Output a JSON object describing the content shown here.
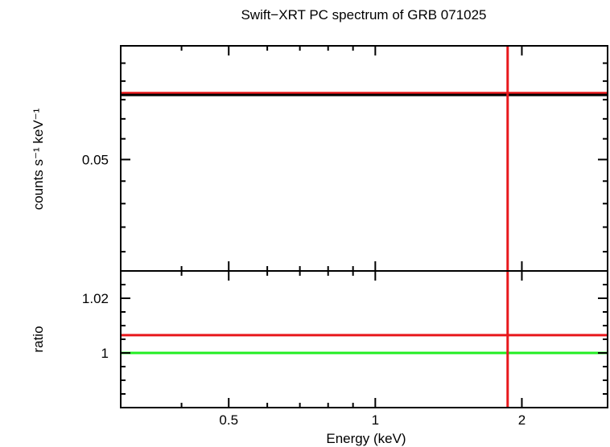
{
  "chart_data": {
    "title": "Swift−XRT PC spectrum of GRB 071025",
    "xlabel": "Energy (keV)",
    "x_scale": "log",
    "xlim": [
      0.3,
      3.0
    ],
    "xticks": [
      {
        "value": 0.5,
        "label": "0.5"
      },
      {
        "value": 1,
        "label": "1"
      },
      {
        "value": 2,
        "label": "2"
      }
    ],
    "panels": [
      {
        "id": "spectrum",
        "type": "line",
        "ylabel": "counts s⁻¹ keV⁻¹",
        "y_scale": "log",
        "ylim": [
          0.0405,
          0.062
        ],
        "yticks": [
          {
            "value": 0.05,
            "label": "0.05"
          }
        ],
        "series": [
          {
            "kind": "hline",
            "y": 0.0567,
            "color": "#e8181c"
          },
          {
            "kind": "hline",
            "y": 0.0565,
            "color": "#000000"
          },
          {
            "kind": "vline",
            "x": 1.87,
            "color": "#e8181c"
          }
        ]
      },
      {
        "id": "ratio",
        "type": "line",
        "ylabel": "ratio",
        "y_scale": "linear",
        "ylim": [
          0.98,
          1.03
        ],
        "yticks": [
          {
            "value": 1,
            "label": "1"
          },
          {
            "value": 1.02,
            "label": "1.02"
          }
        ],
        "series": [
          {
            "kind": "hline",
            "y": 1.0065,
            "color": "#e8181c"
          },
          {
            "kind": "hline",
            "y": 1.0,
            "color": "#22ee22"
          },
          {
            "kind": "vline",
            "x": 1.87,
            "color": "#e8181c"
          }
        ]
      }
    ]
  }
}
